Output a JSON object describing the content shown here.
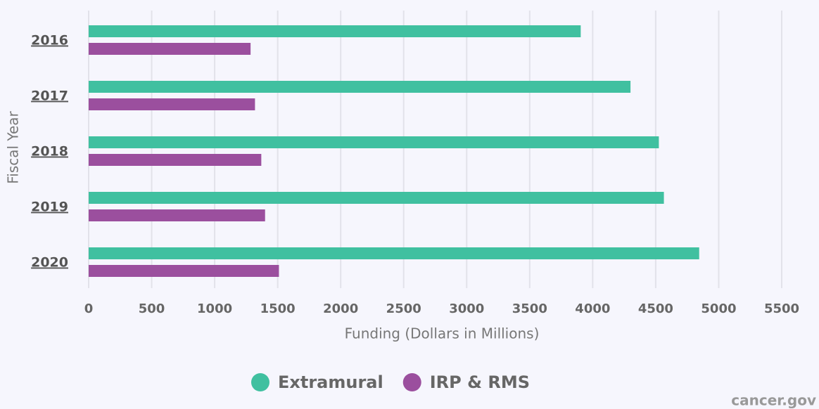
{
  "chart_data": {
    "type": "bar",
    "orientation": "horizontal",
    "categories": [
      "2016",
      "2017",
      "2018",
      "2019",
      "2020"
    ],
    "series": [
      {
        "name": "Extramural",
        "color": "#40c0a0",
        "values": [
          3905,
          4300,
          4525,
          4565,
          4845
        ]
      },
      {
        "name": "IRP & RMS",
        "color": "#9b4f9e",
        "values": [
          1285,
          1320,
          1370,
          1400,
          1510
        ]
      }
    ],
    "xlabel": "Funding (Dollars in Millions)",
    "ylabel": "Fiscal Year",
    "xlim": [
      0,
      5500
    ],
    "xticks": [
      0,
      500,
      1000,
      1500,
      2000,
      2500,
      3000,
      3500,
      4000,
      4500,
      5000,
      5500
    ],
    "grid": true,
    "legend": "bottom",
    "credit": "cancer.gov"
  }
}
